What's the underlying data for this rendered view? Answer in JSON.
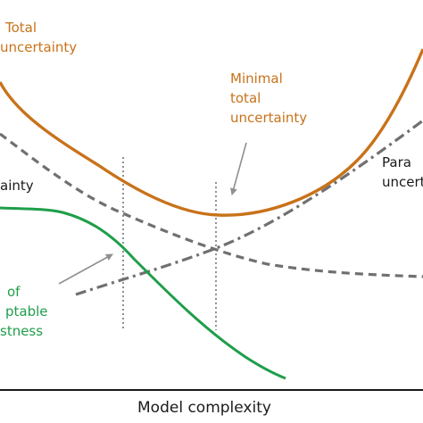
{
  "labels": {
    "total_uncertainty": [
      "Total",
      "uncertainty"
    ],
    "minimal_total_uncertainty": [
      "Minimal",
      "total",
      "uncertainty"
    ],
    "parameter_uncertainty": [
      "Para",
      "uncert"
    ],
    "model_uncertainty": "ainty",
    "acceptable_robustness": [
      "of",
      "ptable",
      "stness"
    ],
    "x_axis": "Model complexity"
  },
  "colors": {
    "total": "#c8721a",
    "robustness": "#1f9e4a",
    "uncertainty_lines": "#707070",
    "annotation": "#909090",
    "axis": "#1a1a1a"
  }
}
